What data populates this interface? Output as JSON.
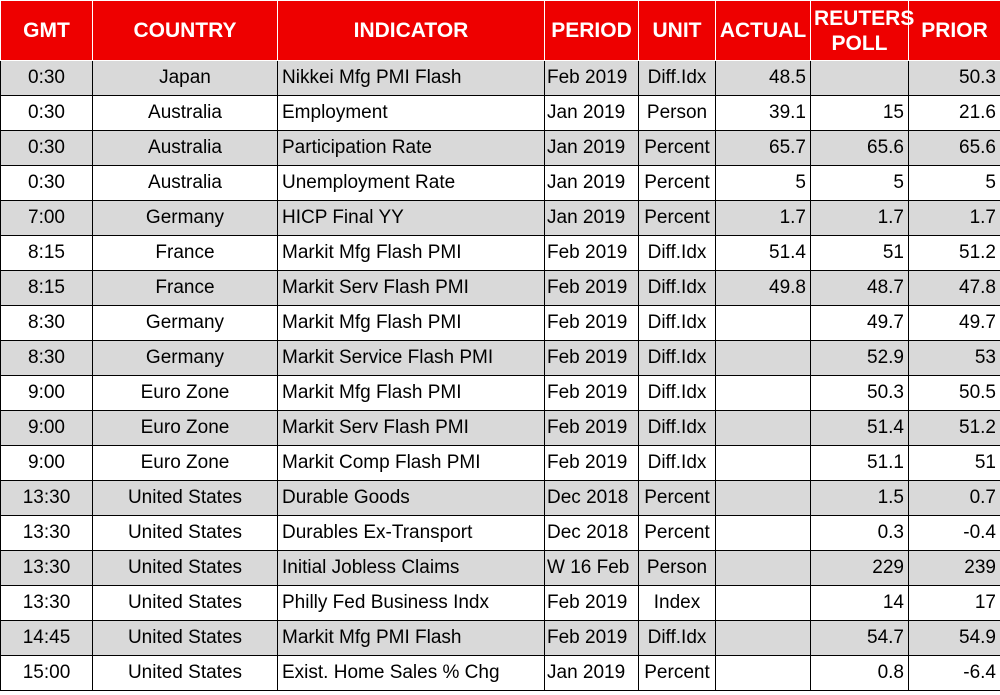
{
  "headers": {
    "gmt": "GMT",
    "country": "COUNTRY",
    "indicator": "INDICATOR",
    "period": "PERIOD",
    "unit": "UNIT",
    "actual": "ACTUAL",
    "poll_line1": "REUTERS",
    "poll_line2": "POLL",
    "prior": "PRIOR"
  },
  "colors": {
    "header_bg": "#ee0000",
    "header_text": "#ffffff",
    "stripe": "#d9d9d9"
  },
  "rows": [
    {
      "gmt": "0:30",
      "country": "Japan",
      "indicator": "Nikkei Mfg PMI Flash",
      "period": "Feb 2019",
      "unit": "Diff.Idx",
      "actual": "48.5",
      "poll": "",
      "prior": "50.3"
    },
    {
      "gmt": "0:30",
      "country": "Australia",
      "indicator": "Employment",
      "period": "Jan 2019",
      "unit": "Person",
      "actual": "39.1",
      "poll": "15",
      "prior": "21.6"
    },
    {
      "gmt": "0:30",
      "country": "Australia",
      "indicator": "Participation Rate",
      "period": "Jan 2019",
      "unit": "Percent",
      "actual": "65.7",
      "poll": "65.6",
      "prior": "65.6"
    },
    {
      "gmt": "0:30",
      "country": "Australia",
      "indicator": "Unemployment Rate",
      "period": "Jan 2019",
      "unit": "Percent",
      "actual": "5",
      "poll": "5",
      "prior": "5"
    },
    {
      "gmt": "7:00",
      "country": "Germany",
      "indicator": "HICP Final YY",
      "period": "Jan 2019",
      "unit": "Percent",
      "actual": "1.7",
      "poll": "1.7",
      "prior": "1.7"
    },
    {
      "gmt": "8:15",
      "country": "France",
      "indicator": "Markit Mfg Flash PMI",
      "period": "Feb 2019",
      "unit": "Diff.Idx",
      "actual": "51.4",
      "poll": "51",
      "prior": "51.2"
    },
    {
      "gmt": "8:15",
      "country": "France",
      "indicator": "Markit Serv Flash PMI",
      "period": "Feb 2019",
      "unit": "Diff.Idx",
      "actual": "49.8",
      "poll": "48.7",
      "prior": "47.8"
    },
    {
      "gmt": "8:30",
      "country": "Germany",
      "indicator": "Markit Mfg Flash PMI",
      "period": "Feb 2019",
      "unit": "Diff.Idx",
      "actual": "",
      "poll": "49.7",
      "prior": "49.7"
    },
    {
      "gmt": "8:30",
      "country": "Germany",
      "indicator": "Markit Service Flash PMI",
      "period": "Feb 2019",
      "unit": "Diff.Idx",
      "actual": "",
      "poll": "52.9",
      "prior": "53"
    },
    {
      "gmt": "9:00",
      "country": "Euro Zone",
      "indicator": "Markit Mfg Flash PMI",
      "period": "Feb 2019",
      "unit": "Diff.Idx",
      "actual": "",
      "poll": "50.3",
      "prior": "50.5"
    },
    {
      "gmt": "9:00",
      "country": "Euro Zone",
      "indicator": "Markit Serv Flash PMI",
      "period": "Feb 2019",
      "unit": "Diff.Idx",
      "actual": "",
      "poll": "51.4",
      "prior": "51.2"
    },
    {
      "gmt": "9:00",
      "country": "Euro Zone",
      "indicator": "Markit Comp Flash PMI",
      "period": "Feb 2019",
      "unit": "Diff.Idx",
      "actual": "",
      "poll": "51.1",
      "prior": "51"
    },
    {
      "gmt": "13:30",
      "country": "United States",
      "indicator": "Durable Goods",
      "period": "Dec 2018",
      "unit": "Percent",
      "actual": "",
      "poll": "1.5",
      "prior": "0.7"
    },
    {
      "gmt": "13:30",
      "country": "United States",
      "indicator": "Durables Ex-Transport",
      "period": "Dec 2018",
      "unit": "Percent",
      "actual": "",
      "poll": "0.3",
      "prior": "-0.4"
    },
    {
      "gmt": "13:30",
      "country": "United States",
      "indicator": "Initial Jobless Claims",
      "period": "W 16 Feb",
      "unit": "Person",
      "actual": "",
      "poll": "229",
      "prior": "239"
    },
    {
      "gmt": "13:30",
      "country": "United States",
      "indicator": "Philly Fed Business Indx",
      "period": "Feb 2019",
      "unit": "Index",
      "actual": "",
      "poll": "14",
      "prior": "17"
    },
    {
      "gmt": "14:45",
      "country": "United States",
      "indicator": "Markit Mfg PMI Flash",
      "period": "Feb 2019",
      "unit": "Diff.Idx",
      "actual": "",
      "poll": "54.7",
      "prior": "54.9"
    },
    {
      "gmt": "15:00",
      "country": "United States",
      "indicator": "Exist. Home Sales % Chg",
      "period": "Jan 2019",
      "unit": "Percent",
      "actual": "",
      "poll": "0.8",
      "prior": "-6.4"
    }
  ]
}
